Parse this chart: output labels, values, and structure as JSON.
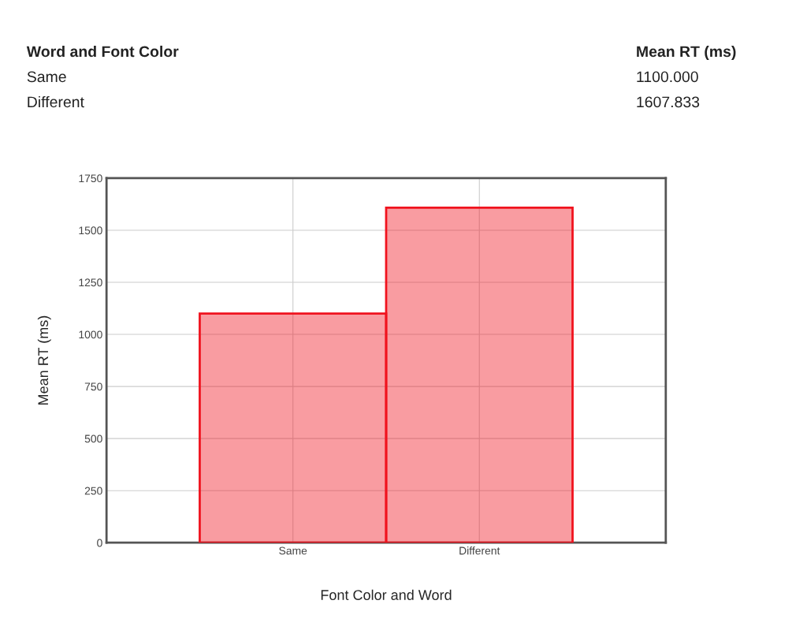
{
  "chart_data": {
    "type": "bar",
    "xlabel": "Font Color and Word",
    "ylabel": "Mean RT (ms)",
    "categories": [
      "Same",
      "Different"
    ],
    "series": [
      {
        "color": "#f0131e",
        "values": [
          1100,
          1607.833
        ]
      }
    ],
    "ylim": [
      0,
      1750
    ],
    "yticks": [
      0,
      250,
      500,
      750,
      1000,
      1250,
      1500,
      1750
    ],
    "grid": true,
    "legend": false,
    "annotations": [
      "Word and Font Color",
      "Mean RT (ms)",
      "Same",
      "1100.000",
      "Different",
      "1607.833"
    ]
  }
}
